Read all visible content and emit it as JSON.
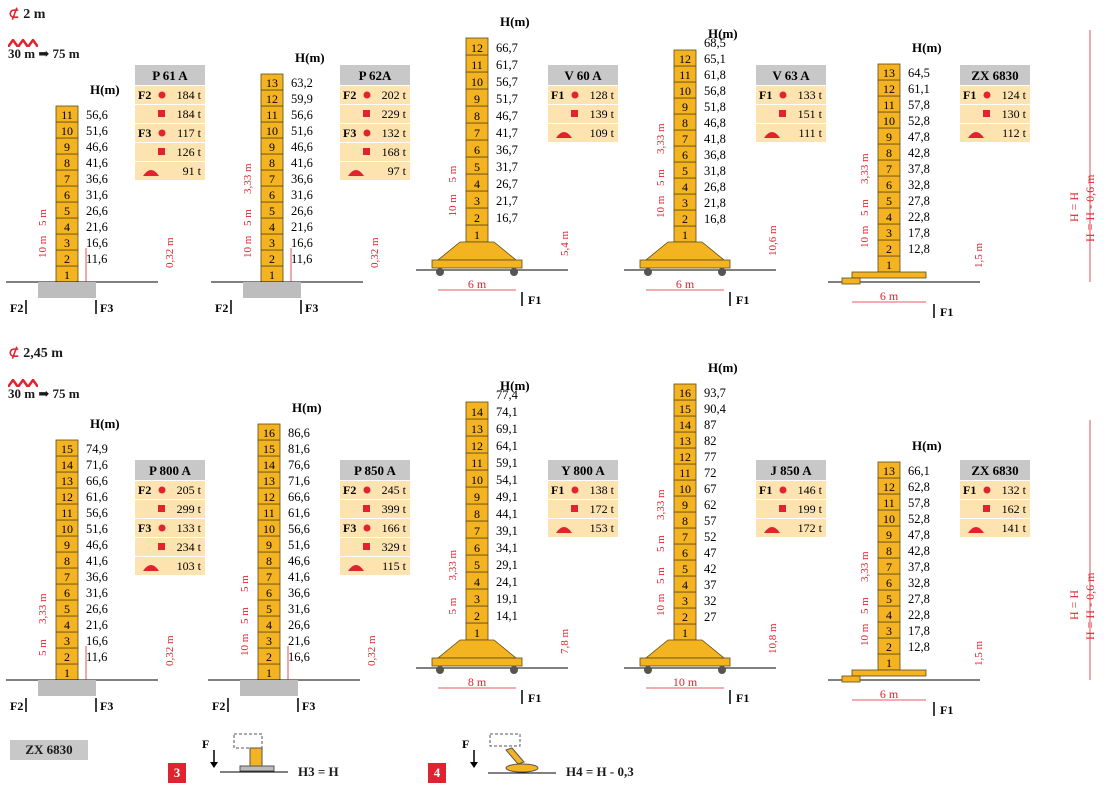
{
  "colors": {
    "tower": "#f4b321",
    "dim": "#e0232e",
    "base_grey": "#bdbdbd",
    "table_bg": "#fce3b0",
    "table_head": "#c8c8c8"
  },
  "sections": [
    {
      "mast": "2 m",
      "range": "30 m ➡ 75 m"
    },
    {
      "mast": "2,45 m",
      "range": "30 m ➡ 75 m"
    }
  ],
  "common": {
    "h_label": "H(m)",
    "f1": "F1",
    "f2": "F2",
    "f3": "F3",
    "h_eq": "H = H",
    "h_eq2": "H = H - 0,6 m",
    "clearance_032": "0,32 m",
    "clearance_15": "1,5 m"
  },
  "cranes": [
    {
      "name": "P 61 A",
      "sections": [
        "1",
        "2",
        "3",
        "4",
        "5",
        "6",
        "7",
        "8",
        "9",
        "10",
        "11"
      ],
      "heights": [
        "11,6",
        "16,6",
        "21,6",
        "26,6",
        "31,6",
        "36,6",
        "41,6",
        "46,6",
        "51,6",
        "56,6"
      ],
      "loads": [
        {
          "k": "F2",
          "dot": "184 t",
          "sq": "184 t"
        },
        {
          "k": "F3",
          "dot": "117 t",
          "sq": "126 t"
        }
      ],
      "anchor": "91 t",
      "dims": [
        "10 m",
        "5 m"
      ],
      "clear": "0,32 m",
      "base": "grey",
      "forces": [
        "F2",
        "F3"
      ]
    },
    {
      "name": "P 62A",
      "sections": [
        "1",
        "2",
        "3",
        "4",
        "5",
        "6",
        "7",
        "8",
        "9",
        "10",
        "11",
        "12",
        "13"
      ],
      "heights": [
        "11,6",
        "16,6",
        "21,6",
        "26,6",
        "31,6",
        "36,6",
        "41,6",
        "46,6",
        "51,6",
        "56,6",
        "59,9",
        "63,2"
      ],
      "loads": [
        {
          "k": "F2",
          "dot": "202 t",
          "sq": "229 t"
        },
        {
          "k": "F3",
          "dot": "132 t",
          "sq": "168 t"
        }
      ],
      "anchor": "97 t",
      "dims": [
        "10 m",
        "5 m",
        "3,33 m"
      ],
      "clear": "0,32 m",
      "base": "grey",
      "forces": [
        "F2",
        "F3"
      ]
    },
    {
      "name": "V 60 A",
      "sections": [
        "1",
        "2",
        "3",
        "4",
        "5",
        "6",
        "7",
        "8",
        "9",
        "10",
        "11",
        "12"
      ],
      "heights": [
        "16,7",
        "21,7",
        "26,7",
        "31,7",
        "36,7",
        "41,7",
        "46,7",
        "51,7",
        "56,7",
        "61,7",
        "66,7"
      ],
      "loads": [
        {
          "k": "F1",
          "dot": "128 t",
          "sq": "139 t"
        }
      ],
      "anchor": "109 t",
      "dims": [
        "10 m",
        "5 m"
      ],
      "clear": "5,4 m",
      "span": "6 m",
      "base": "portal",
      "forces": [
        "F1"
      ]
    },
    {
      "name": "V 63 A",
      "sections": [
        "1",
        "2",
        "3",
        "4",
        "5",
        "6",
        "7",
        "8",
        "9",
        "10",
        "11",
        "12"
      ],
      "heights": [
        "16,8",
        "21,8",
        "26,8",
        "31,8",
        "36,8",
        "41,8",
        "46,8",
        "51,8",
        "56,8",
        "61,8",
        "65,1",
        "68,5"
      ],
      "loads": [
        {
          "k": "F1",
          "dot": "133 t",
          "sq": "151 t"
        }
      ],
      "anchor": "111 t",
      "dims": [
        "10 m",
        "5 m",
        "3,33 m"
      ],
      "clear": "10,6 m",
      "span": "6 m",
      "base": "portal_tall",
      "forces": [
        "F1"
      ]
    },
    {
      "name": "ZX 6830",
      "sections": [
        "1",
        "2",
        "3",
        "4",
        "5",
        "6",
        "7",
        "8",
        "9",
        "10",
        "11",
        "12",
        "13"
      ],
      "heights": [
        "12,8",
        "17,8",
        "22,8",
        "27,8",
        "32,8",
        "37,8",
        "42,8",
        "47,8",
        "52,8",
        "57,8",
        "61,1",
        "64,5"
      ],
      "loads": [
        {
          "k": "F1",
          "dot": "124 t",
          "sq": "130 t"
        }
      ],
      "anchor": "112 t",
      "dims": [
        "10 m",
        "5 m",
        "3,33 m"
      ],
      "clear": "1,5 m",
      "span": "6 m",
      "base": "rail",
      "forces": [
        "F1"
      ]
    },
    {
      "name": "P 800 A",
      "sections": [
        "1",
        "2",
        "3",
        "4",
        "5",
        "6",
        "7",
        "8",
        "9",
        "10",
        "11",
        "12",
        "13",
        "14",
        "15"
      ],
      "heights": [
        "11,6",
        "16,6",
        "21,6",
        "26,6",
        "31,6",
        "36,6",
        "41,6",
        "46,6",
        "51,6",
        "56,6",
        "61,6",
        "66,6",
        "71,6",
        "74,9"
      ],
      "loads": [
        {
          "k": "F2",
          "dot": "205 t",
          "sq": "299 t"
        },
        {
          "k": "F3",
          "dot": "133 t",
          "sq": "234 t"
        }
      ],
      "anchor": "103 t",
      "dims": [
        "5 m",
        "3,33 m"
      ],
      "clear": "0,32 m",
      "base": "grey",
      "forces": [
        "F2",
        "F3"
      ]
    },
    {
      "name": "P 850 A",
      "sections": [
        "1",
        "2",
        "3",
        "4",
        "5",
        "6",
        "7",
        "8",
        "9",
        "10",
        "11",
        "12",
        "13",
        "14",
        "15",
        "16"
      ],
      "heights": [
        "16,6",
        "21,6",
        "26,6",
        "31,6",
        "36,6",
        "41,6",
        "46,6",
        "51,6",
        "56,6",
        "61,6",
        "66,6",
        "71,6",
        "76,6",
        "81,6",
        "86,6"
      ],
      "loads": [
        {
          "k": "F2",
          "dot": "245 t",
          "sq": "399 t"
        },
        {
          "k": "F3",
          "dot": "166 t",
          "sq": "329 t"
        }
      ],
      "anchor": "115 t",
      "dims": [
        "10 m",
        "5 m",
        "5 m"
      ],
      "clear": "0,32 m",
      "base": "grey",
      "forces": [
        "F2",
        "F3"
      ]
    },
    {
      "name": "Y 800 A",
      "sections": [
        "1",
        "2",
        "3",
        "4",
        "5",
        "6",
        "7",
        "8",
        "9",
        "10",
        "11",
        "12",
        "13",
        "14"
      ],
      "heights": [
        "14,1",
        "19,1",
        "24,1",
        "29,1",
        "34,1",
        "39,1",
        "44,1",
        "49,1",
        "54,1",
        "59,1",
        "64,1",
        "69,1",
        "74,1",
        "77,4"
      ],
      "loads": [
        {
          "k": "F1",
          "dot": "138 t",
          "sq": "172 t"
        }
      ],
      "anchor": "153 t",
      "dims": [
        "5 m",
        "3,33 m"
      ],
      "clear": "7,8 m",
      "span": "8 m",
      "base": "portal",
      "forces": [
        "F1"
      ]
    },
    {
      "name": "J 850 A",
      "sections": [
        "1",
        "2",
        "3",
        "4",
        "5",
        "6",
        "7",
        "8",
        "9",
        "10",
        "11",
        "12",
        "13",
        "14",
        "15",
        "16"
      ],
      "heights": [
        "27",
        "32",
        "37",
        "42",
        "47",
        "52",
        "57",
        "62",
        "67",
        "72",
        "77",
        "82",
        "87",
        "90,4",
        "93,7"
      ],
      "loads": [
        {
          "k": "F1",
          "dot": "146 t",
          "sq": "199 t"
        }
      ],
      "anchor": "172 t",
      "dims": [
        "10 m",
        "5 m",
        "5 m",
        "3,33 m"
      ],
      "clear": "10,8 m",
      "span": "10 m",
      "base": "portal_tall",
      "forces": [
        "F1"
      ]
    },
    {
      "name": "ZX 6830",
      "sections": [
        "1",
        "2",
        "3",
        "4",
        "5",
        "6",
        "7",
        "8",
        "9",
        "10",
        "11",
        "12",
        "13"
      ],
      "heights": [
        "12,8",
        "17,8",
        "22,8",
        "27,8",
        "32,8",
        "37,8",
        "42,8",
        "47,8",
        "52,8",
        "57,8",
        "62,8",
        "66,1"
      ],
      "loads": [
        {
          "k": "F1",
          "dot": "132 t",
          "sq": "162 t"
        }
      ],
      "anchor": "141 t",
      "dims": [
        "10 m",
        "5 m",
        "3,33 m"
      ],
      "clear": "1,5 m",
      "span": "6 m",
      "base": "rail",
      "forces": [
        "F1"
      ]
    }
  ],
  "footer": {
    "model": "ZX 6830",
    "n3": "3",
    "n4": "4",
    "f": "F",
    "h3": "H3 = H",
    "h4": "H4 = H - 0,3"
  }
}
